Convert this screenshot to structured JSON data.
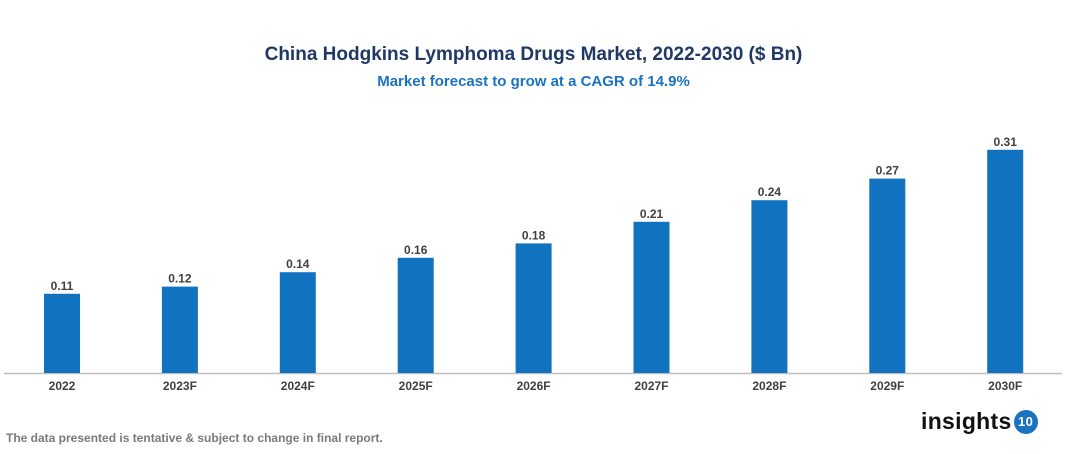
{
  "chart_data": {
    "type": "bar",
    "title": "China Hodgkins Lymphoma Drugs Market, 2022-2030 ($ Bn)",
    "subtitle": "Market forecast to grow at a CAGR of 14.9%",
    "categories": [
      "2022",
      "2023F",
      "2024F",
      "2025F",
      "2026F",
      "2027F",
      "2028F",
      "2029F",
      "2030F"
    ],
    "values": [
      0.11,
      0.12,
      0.14,
      0.16,
      0.18,
      0.21,
      0.24,
      0.27,
      0.31
    ],
    "data_labels": [
      "0.11",
      "0.12",
      "0.14",
      "0.16",
      "0.18",
      "0.21",
      "0.24",
      "0.27",
      "0.31"
    ],
    "xlabel": "",
    "ylabel": "",
    "grid": false,
    "bar_color": "#1172bf"
  },
  "footer": {
    "disclaimer": "The data presented is tentative & subject to change in final report.",
    "logo_text": "insights",
    "logo_badge": "10"
  }
}
